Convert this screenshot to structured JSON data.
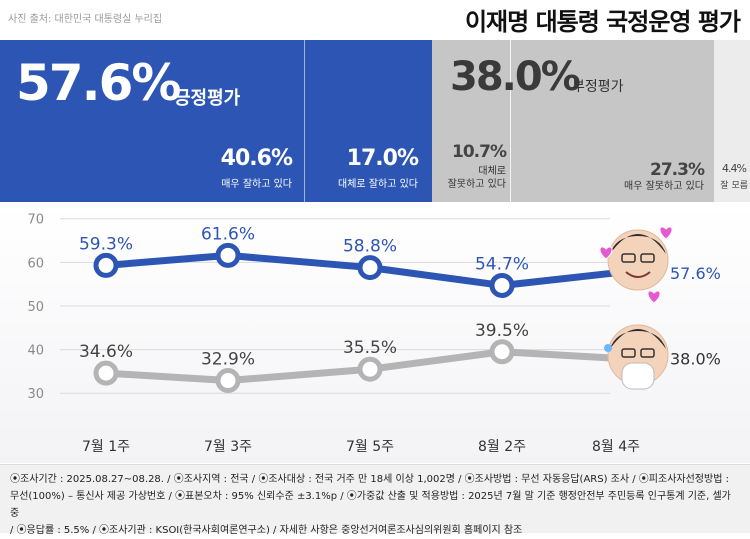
{
  "credit": "사진 출처: 대한민국 대통령실 누리집",
  "title": "이재명 대통령 국정운영 평가",
  "summary": {
    "positive": {
      "pct": "57.6%",
      "label": "긍정평가"
    },
    "very_good": {
      "pct": "40.6%",
      "label": "매우 잘하고 있다"
    },
    "somewhat_good": {
      "pct": "17.0%",
      "label": "대체로 잘하고 있다"
    },
    "negative": {
      "pct": "38.0%",
      "label": "부정평가"
    },
    "somewhat_bad": {
      "pct": "10.7%",
      "label_1": "대체로",
      "label_2": "잘못하고 있다"
    },
    "very_bad": {
      "pct": "27.3%",
      "label": "매우 잘못하고 있다"
    },
    "dont_know": {
      "pct": "4.4%",
      "label": "잘 모름"
    }
  },
  "colors": {
    "positive": "#2d55b4",
    "negative": "#b4b4b4",
    "negative_band": "#c6c6c6"
  },
  "chart_data": {
    "type": "line",
    "categories": [
      "7월 1주",
      "7월 3주",
      "7월 5주",
      "8월 2주",
      "8월 4주"
    ],
    "series": [
      {
        "name": "",
        "color": "#2d55b4",
        "values": [
          59.3,
          61.6,
          58.8,
          54.7,
          57.6
        ],
        "labels": [
          "59.3%",
          "61.6%",
          "58.8%",
          "54.7%",
          "57.6%"
        ]
      },
      {
        "name": "",
        "color": "#b4b4b4",
        "values": [
          34.6,
          32.9,
          35.5,
          39.5,
          38.0
        ],
        "labels": [
          "34.6%",
          "32.9%",
          "35.5%",
          "39.5%",
          "38.0%"
        ]
      }
    ],
    "y_ticks": [
      "70",
      "60",
      "50",
      "40",
      "30"
    ],
    "ylim": [
      25,
      72
    ],
    "grid": true,
    "legend": "none"
  },
  "footer": {
    "line1": "⦿조사기간 : 2025.08.27~08.28. / ⦿조사지역 : 전국 / ⦿조사대상 : 전국 거주 만 18세 이상 1,002명 / ⦿조사방법 : 무선 자동응답(ARS) 조사 / ⦿피조사자선정방법 :",
    "line2": "무선(100%) – 통신사 제공 가상번호 / ⦿표본오차 : 95% 신뢰수준 ±3.1%p / ⦿가중값 산출 및 적용방법 : 2025년 7월 말 기준 행정안전부 주민등록 인구통계 기준, 셀가중",
    "line3": "/ ⦿응답률 : 5.5% / ⦿조사기관 : KSOI(한국사회여론연구소) / 자세한 사항은 중앙선거여론조사심의위원회 홈페이지 참조"
  }
}
